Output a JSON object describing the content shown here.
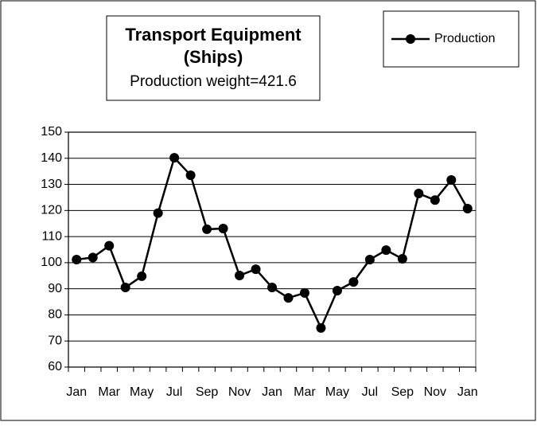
{
  "chart_data": {
    "type": "line",
    "title": [
      "Transport Equipment",
      "(Ships)"
    ],
    "subtitle": "Production weight=421.6",
    "categories": [
      "Jan",
      null,
      "Mar",
      null,
      "May",
      null,
      "Jul",
      null,
      "Sep",
      null,
      "Nov",
      null,
      "Jan",
      null,
      "Mar",
      null,
      "May",
      null,
      "Jul",
      null,
      "Sep",
      null,
      "Nov",
      null,
      "Jan"
    ],
    "series": [
      {
        "name": "Production",
        "color": "#000000",
        "values": [
          101.2,
          102,
          106.5,
          90.5,
          94.8,
          119,
          140.2,
          133.5,
          112.8,
          113.1,
          95.1,
          97.5,
          90.5,
          86.5,
          88.4,
          75,
          89.3,
          92.6,
          101.2,
          104.8,
          101.5,
          126.5,
          124,
          131.7,
          120.7
        ]
      }
    ],
    "ylim": [
      60,
      150
    ],
    "yticks": [
      60,
      70,
      80,
      90,
      100,
      110,
      120,
      130,
      140,
      150
    ],
    "grid": true,
    "legend": "top-right"
  }
}
